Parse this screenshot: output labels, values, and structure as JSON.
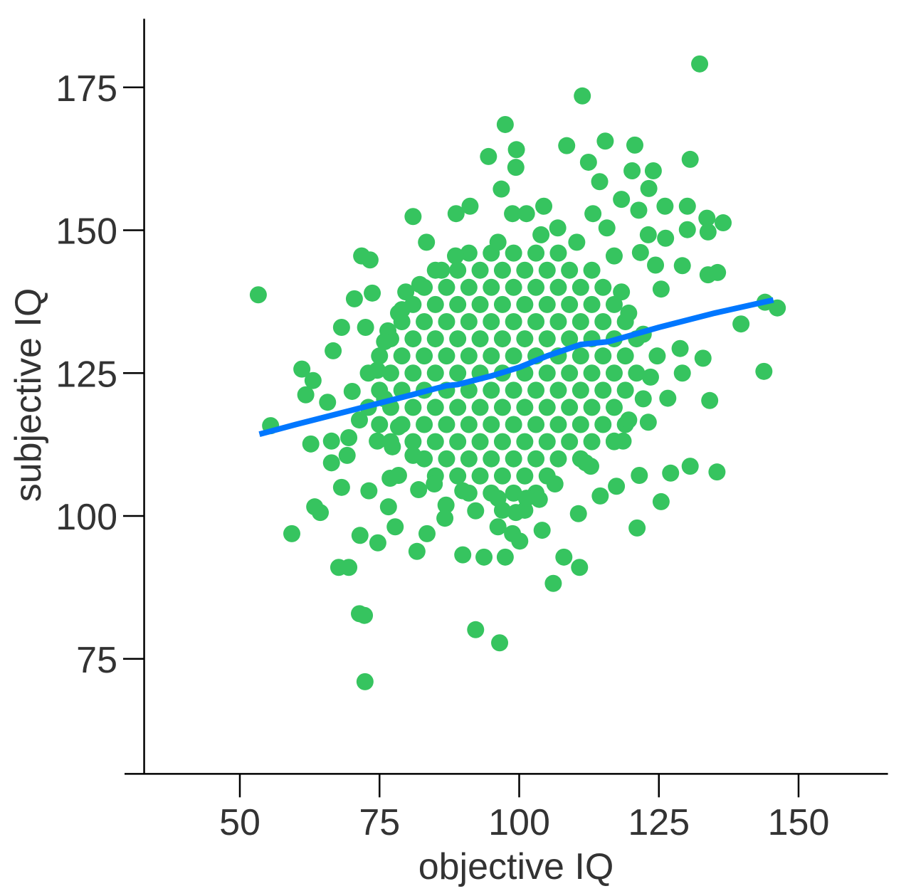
{
  "chart_data": {
    "type": "scatter",
    "x_label": "objective IQ",
    "y_label": "subjective IQ",
    "color": "#36c45f",
    "x": [
      91,
      95,
      99,
      103,
      107,
      85,
      89,
      93,
      97,
      101,
      105,
      109,
      113,
      83,
      87,
      91,
      95,
      99,
      103,
      107,
      111,
      115,
      81,
      85,
      89,
      93,
      97,
      101,
      105,
      109,
      113,
      117,
      79,
      83,
      87,
      91,
      95,
      99,
      103,
      107,
      111,
      115,
      119,
      77,
      81,
      85,
      89,
      93,
      97,
      101,
      105,
      109,
      113,
      117,
      121,
      75,
      79,
      83,
      87,
      91,
      95,
      99,
      103,
      107,
      111,
      115,
      119,
      73,
      77,
      81,
      85,
      89,
      93,
      97,
      101,
      105,
      109,
      113,
      117,
      121,
      75,
      79,
      83,
      87,
      91,
      95,
      99,
      103,
      107,
      111,
      115,
      119,
      73,
      77,
      81,
      85,
      89,
      93,
      97,
      101,
      105,
      109,
      113,
      117,
      75,
      79,
      83,
      87,
      91,
      95,
      99,
      103,
      107,
      111,
      115,
      119,
      77,
      81,
      85,
      89,
      93,
      97,
      101,
      105,
      109,
      113,
      117,
      83,
      87,
      91,
      95,
      99,
      103,
      107,
      111,
      85,
      89,
      93,
      97,
      101,
      105,
      91,
      95,
      99,
      103,
      97,
      101,
      53.3,
      55.5,
      59.3,
      61.1,
      61.8,
      63.1,
      62.7,
      63.4,
      64.4,
      65.7,
      66.4,
      66.4,
      66.7,
      68.2,
      68.2,
      67.7,
      69.5,
      69.2,
      69.5,
      70.5,
      71.8,
      73.3,
      72.5,
      73.7,
      73.1,
      71.5,
      71.4,
      72.3,
      72.4,
      74.7,
      76.6,
      77.8,
      81,
      83.4,
      81.7,
      83.5,
      88.7,
      89.9,
      92.2,
      96.5,
      93.7,
      97.5,
      97.5,
      94.5,
      99.5,
      99.4,
      96.8,
      104.4,
      106.1,
      108,
      110.8,
      111.3,
      108.5,
      112.4,
      115.4,
      114.4,
      120.7,
      120.2,
      124,
      123.2,
      121.4,
      126.1,
      130.6,
      130.1,
      130.1,
      133.6,
      136.5,
      133.8,
      132.3,
      126.2,
      129.2,
      133.8,
      135.5,
      139.7,
      144,
      146.2,
      143.8,
      132.9,
      134.1,
      129.2,
      126.6,
      123.1,
      130.6,
      135.4,
      127.1,
      125.4,
      121.1,
      121.5,
      114.5,
      117.4,
      118.6,
      112.8,
      110.6,
      103.6,
      104.1,
      86.9,
      86.7,
      92.2,
      128.8,
      125.4,
      123.1,
      124.4,
      121.7,
      118.3,
      79.7,
      76.5,
      78.4,
      76.9,
      82,
      74.6,
      77.3,
      71.4,
      70.1,
      79,
      86.1,
      91.2,
      98.8,
      101.3,
      106.9,
      113.2,
      115.7,
      117,
      118.3,
      119.6,
      122.2,
      124.7,
      123.5,
      122.2,
      119.6,
      117,
      111.9,
      106.4,
      101.3,
      96.2,
      89.9,
      84.8,
      81,
      78.4,
      75.9,
      74.6,
      75.9,
      78.4,
      82.2,
      88.6,
      96.2,
      103.9,
      110.3,
      98.8,
      100.1,
      96.2,
      99.4
    ],
    "values": [
      146,
      146,
      146,
      146,
      146,
      143,
      143,
      143,
      143,
      143,
      143,
      143,
      143,
      140,
      140,
      140,
      140,
      140,
      140,
      140,
      140,
      140,
      137,
      137,
      137,
      137,
      137,
      137,
      137,
      137,
      137,
      137,
      134,
      134,
      134,
      134,
      134,
      134,
      134,
      134,
      134,
      134,
      134,
      131,
      131,
      131,
      131,
      131,
      131,
      131,
      131,
      131,
      131,
      131,
      131,
      128,
      128,
      128,
      128,
      128,
      128,
      128,
      128,
      128,
      128,
      128,
      128,
      125,
      125,
      125,
      125,
      125,
      125,
      125,
      125,
      125,
      125,
      125,
      125,
      125,
      122,
      122,
      122,
      122,
      122,
      122,
      122,
      122,
      122,
      122,
      122,
      122,
      119,
      119,
      119,
      119,
      119,
      119,
      119,
      119,
      119,
      119,
      119,
      119,
      116,
      116,
      116,
      116,
      116,
      116,
      116,
      116,
      116,
      116,
      116,
      116,
      113,
      113,
      113,
      113,
      113,
      113,
      113,
      113,
      113,
      113,
      113,
      110,
      110,
      110,
      110,
      110,
      110,
      110,
      110,
      107,
      107,
      107,
      107,
      107,
      107,
      104,
      104,
      104,
      104,
      101,
      101,
      138.7,
      115.8,
      96.9,
      125.7,
      121.2,
      123.7,
      112.6,
      101.6,
      100.6,
      119.9,
      113.1,
      109.3,
      128.9,
      133,
      105,
      91,
      91,
      110.6,
      113.7,
      138,
      145.5,
      144.8,
      133,
      139,
      104.4,
      96.6,
      82.9,
      82.6,
      71,
      95.3,
      101.6,
      98.1,
      152.4,
      147.9,
      93.8,
      96.9,
      152.9,
      93.2,
      80.1,
      77.8,
      92.8,
      92.8,
      168.5,
      162.9,
      164.1,
      161,
      157.2,
      154.2,
      88.2,
      92.8,
      91,
      173.5,
      164.8,
      161.9,
      165.6,
      158.5,
      164.9,
      160.4,
      160.4,
      157.3,
      153.5,
      154.2,
      162.4,
      154.2,
      150.1,
      152.1,
      151.3,
      149.7,
      179.1,
      148.6,
      143.8,
      142.2,
      142.6,
      133.6,
      137.4,
      136.4,
      125.3,
      127.6,
      120.2,
      125,
      120.6,
      116.4,
      108.7,
      107.7,
      107.5,
      102.5,
      97.9,
      107.1,
      103.5,
      105.2,
      113.1,
      108.7,
      100.4,
      102.9,
      97.5,
      101.9,
      99.6,
      100.9,
      129.3,
      139.7,
      149.2,
      143.9,
      146.1,
      155.4,
      139.2,
      132.4,
      107.1,
      106.6,
      104.6,
      113.1,
      112.1,
      116.8,
      121.8,
      136.1,
      143,
      154.2,
      152.9,
      152.9,
      150.4,
      152.9,
      150.4,
      145.5,
      139.2,
      135.5,
      131.8,
      128,
      124.3,
      120.5,
      116.8,
      113.1,
      109.3,
      105.6,
      103.1,
      103.1,
      104.4,
      105.6,
      110.6,
      115.6,
      120.5,
      125.5,
      130.5,
      135.5,
      140.5,
      145.5,
      147.9,
      149.2,
      147.9,
      96.9,
      95.6,
      98.1,
      100.6
    ],
    "trend": {
      "color": "#0077ff",
      "x": [
        53.5,
        60,
        70,
        80,
        87,
        89,
        95,
        100,
        105,
        111,
        116,
        125,
        135,
        145.5
      ],
      "values": [
        114.3,
        116,
        118.5,
        121,
        122.8,
        123,
        124.5,
        126,
        128,
        130,
        130.5,
        133,
        135.5,
        137.8
      ]
    },
    "xlim": [
      33,
      166
    ],
    "ylim": [
      55,
      187
    ],
    "xticks": [
      50,
      75,
      100,
      125,
      150
    ],
    "yticks": [
      75,
      100,
      125,
      150,
      175
    ]
  }
}
